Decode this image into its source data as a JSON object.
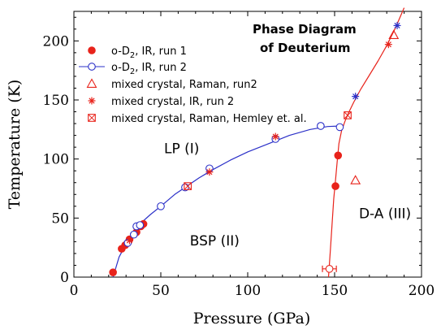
{
  "chart_data": {
    "type": "scatter",
    "title_lines": [
      "Phase Diagram",
      "of Deuterium"
    ],
    "xlabel": "Pressure (GPa)",
    "ylabel": "Temperature (K)",
    "xlim": [
      0,
      200
    ],
    "ylim": [
      0,
      225
    ],
    "xticks": [
      0,
      50,
      100,
      150,
      200
    ],
    "yticks": [
      0,
      50,
      100,
      150,
      200
    ],
    "grid": false,
    "legend_position": "top-left",
    "region_labels": [
      {
        "text": "LP (I)",
        "x": 62,
        "y": 105
      },
      {
        "text": "BSP (II)",
        "x": 81,
        "y": 27
      },
      {
        "text": "D-A (III)",
        "x": 179,
        "y": 50
      }
    ],
    "series": [
      {
        "name": "o-D2, IR, run 1",
        "legend_parts": [
          "o-D",
          "2",
          ", IR, run 1"
        ],
        "marker": "filled-circle",
        "color": "#e8231b",
        "x": [
          22.5,
          27.5,
          29.5,
          32,
          36,
          38.5,
          40,
          150.5,
          152
        ],
        "y": [
          4,
          24,
          27,
          32,
          38,
          43,
          45,
          77,
          103
        ]
      },
      {
        "name": "o-D2, IR, run 2",
        "legend_parts": [
          "o-D",
          "2",
          ", IR, run 2"
        ],
        "marker": "open-circle",
        "color": "#2b30c8",
        "x": [
          31,
          34.5,
          36,
          38,
          50,
          64,
          78,
          116,
          142,
          153
        ],
        "y": [
          29,
          36,
          43,
          44,
          60,
          76,
          92,
          117,
          128,
          127
        ]
      },
      {
        "name": "mixed crystal, Raman, run2",
        "marker": "open-triangle",
        "color": "#e8231b",
        "x": [
          162,
          184
        ],
        "y": [
          82,
          205
        ]
      },
      {
        "name": "mixed crystal, IR, run 2",
        "marker": "asterisk",
        "color": "#e8231b",
        "x": [
          32,
          78,
          116,
          181
        ],
        "y": [
          31,
          89,
          119,
          197
        ]
      },
      {
        "name": "mixed crystal, Raman, Hemley et. al.",
        "marker": "boxed-x",
        "color": "#e8231b",
        "x": [
          65.5,
          157.5
        ],
        "y": [
          77,
          137
        ]
      },
      {
        "name": "",
        "marker": "asterisk",
        "color": "#2b30c8",
        "x": [
          162,
          186
        ],
        "y": [
          153,
          213
        ]
      }
    ],
    "error_bars": [
      {
        "x": 147,
        "y": 7,
        "x_error": 4,
        "color": "#e8231b"
      }
    ],
    "curves": [
      {
        "color": "#2b30c8",
        "x": [
          22.5,
          26,
          30,
          34,
          38,
          44,
          50,
          58,
          65,
          72,
          80,
          90,
          100,
          112,
          124,
          136,
          146,
          153.5
        ],
        "y": [
          0,
          17,
          28,
          38,
          45,
          53,
          60,
          70,
          77,
          84,
          91,
          99,
          106,
          113,
          120,
          125,
          127.5,
          128
        ]
      },
      {
        "color": "#e8231b",
        "x": [
          146.5,
          147.5,
          148.5,
          149.5,
          150.5,
          151.5,
          152.5,
          154,
          156,
          158,
          161,
          165,
          170,
          175,
          180,
          185,
          190
        ],
        "y": [
          0,
          22,
          44,
          66,
          82,
          98,
          113,
          124,
          132,
          139,
          148,
          159,
          171,
          183,
          196,
          211,
          228
        ]
      }
    ]
  }
}
